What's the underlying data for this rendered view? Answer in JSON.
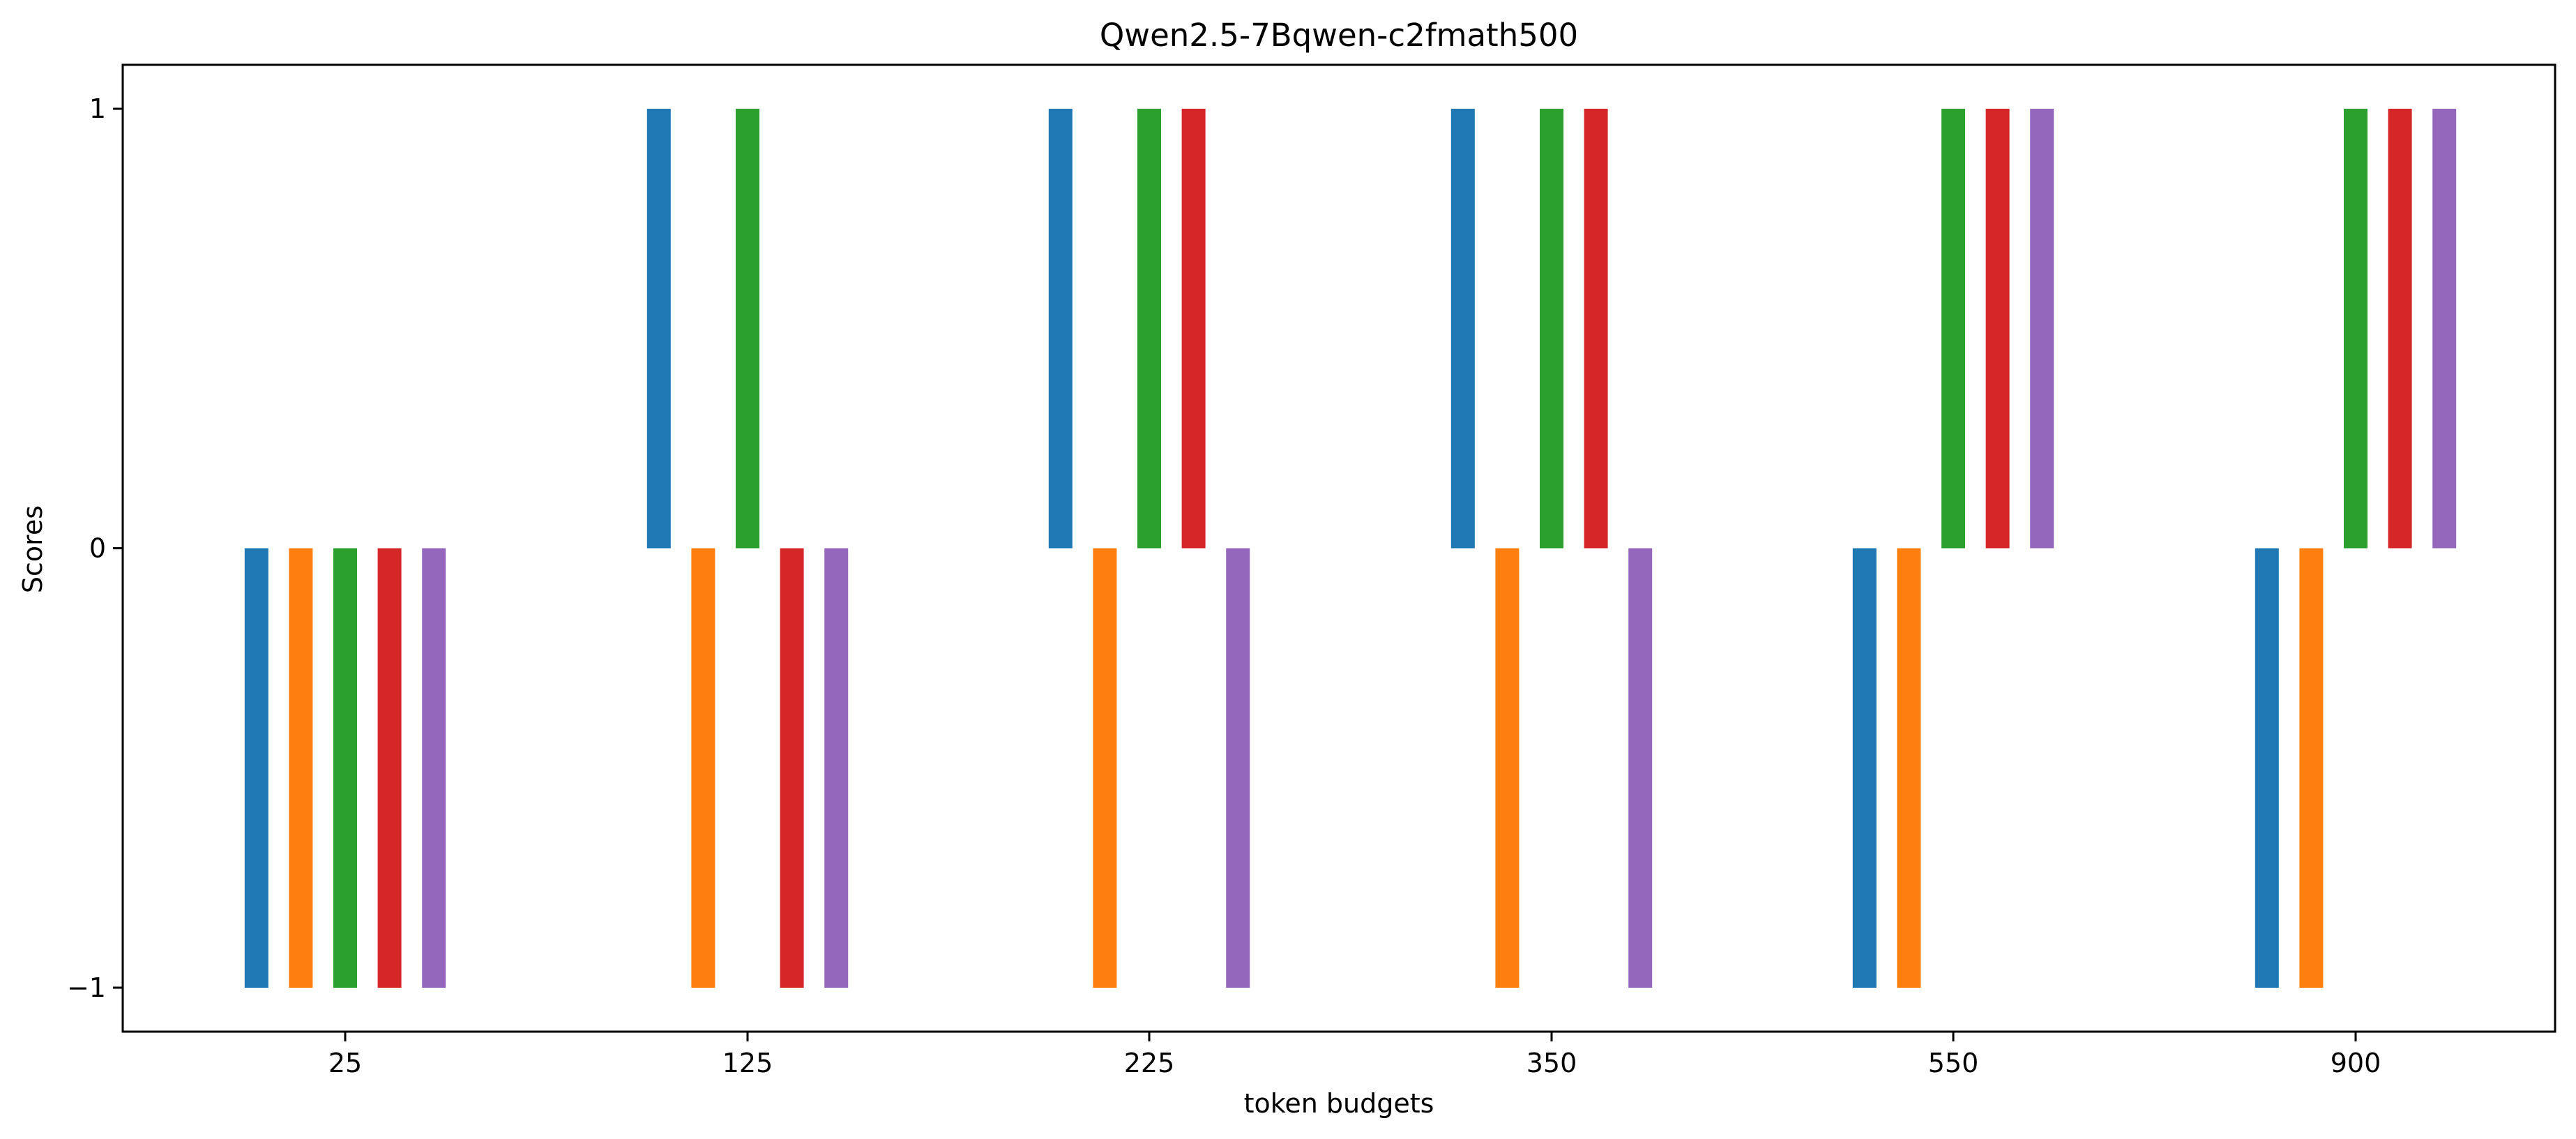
{
  "chart_data": {
    "type": "bar",
    "title": "Qwen2.5-7Bqwen-c2fmath500",
    "xlabel": "token budgets",
    "ylabel": "Scores",
    "categories": [
      "25",
      "125",
      "225",
      "350",
      "550",
      "900"
    ],
    "series": [
      {
        "color": "#1f77b4",
        "values": [
          -1,
          1,
          1,
          1,
          -1,
          -1
        ]
      },
      {
        "color": "#ff7f0e",
        "values": [
          -1,
          -1,
          -1,
          -1,
          -1,
          -1
        ]
      },
      {
        "color": "#2ca02c",
        "values": [
          -1,
          1,
          1,
          1,
          1,
          1
        ]
      },
      {
        "color": "#d62728",
        "values": [
          -1,
          -1,
          1,
          1,
          1,
          1
        ]
      },
      {
        "color": "#9467bd",
        "values": [
          -1,
          -1,
          -1,
          -1,
          1,
          1
        ]
      }
    ],
    "ylim": [
      -1.1,
      1.1
    ],
    "yticks": [
      -1,
      0,
      1
    ],
    "ytick_labels": [
      "−1",
      "0",
      "1"
    ],
    "grid": false,
    "legend": "none"
  }
}
